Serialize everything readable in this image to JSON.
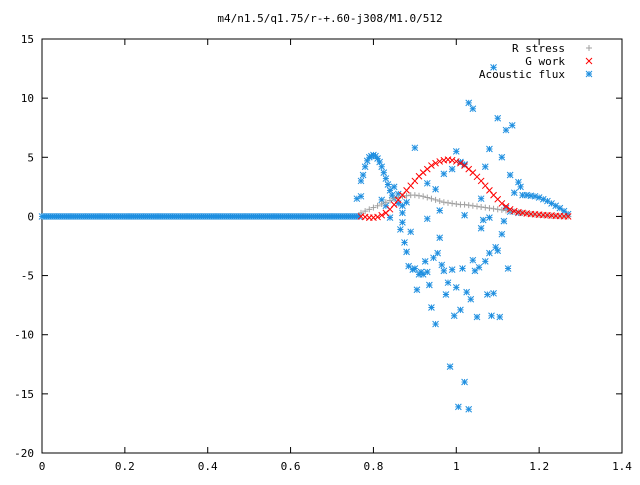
{
  "chart_data": {
    "type": "scatter",
    "title": "m4/n1.5/q1.75/r-+.60-j308/M1.0/512",
    "xlabel": "",
    "ylabel": "",
    "xlim": [
      0,
      1.4
    ],
    "ylim": [
      -20,
      15
    ],
    "x_ticks": [
      0,
      0.2,
      0.4,
      0.6,
      0.8,
      1,
      1.2,
      1.4
    ],
    "x_tick_labels": [
      "0",
      "0.2",
      "0.4",
      "0.6",
      "0.8",
      "1",
      "1.2",
      "1.4"
    ],
    "y_ticks": [
      -20,
      -15,
      -10,
      -5,
      0,
      5,
      10,
      15
    ],
    "y_tick_labels": [
      "-20",
      "-15",
      "-10",
      "-5",
      "0",
      "5",
      "10",
      "15"
    ],
    "grid": false,
    "legend_position": "top-right",
    "series": [
      {
        "name": "R stress",
        "marker": "plus",
        "color": "#a0a0a0",
        "points": [
          [
            0.77,
            0.3
          ],
          [
            0.78,
            0.45
          ],
          [
            0.79,
            0.6
          ],
          [
            0.8,
            0.75
          ],
          [
            0.81,
            0.9
          ],
          [
            0.82,
            1.05
          ],
          [
            0.83,
            1.2
          ],
          [
            0.84,
            1.35
          ],
          [
            0.85,
            1.5
          ],
          [
            0.86,
            1.6
          ],
          [
            0.87,
            1.7
          ],
          [
            0.88,
            1.75
          ],
          [
            0.89,
            1.8
          ],
          [
            0.9,
            1.8
          ],
          [
            0.91,
            1.75
          ],
          [
            0.92,
            1.7
          ],
          [
            0.93,
            1.6
          ],
          [
            0.94,
            1.5
          ],
          [
            0.95,
            1.4
          ],
          [
            0.96,
            1.3
          ],
          [
            0.97,
            1.2
          ],
          [
            0.98,
            1.15
          ],
          [
            0.99,
            1.1
          ],
          [
            1.0,
            1.05
          ],
          [
            1.01,
            1.0
          ],
          [
            1.02,
            1.0
          ],
          [
            1.03,
            0.95
          ],
          [
            1.04,
            0.9
          ],
          [
            1.05,
            0.85
          ],
          [
            1.06,
            0.8
          ],
          [
            1.07,
            0.75
          ],
          [
            1.08,
            0.7
          ],
          [
            1.09,
            0.65
          ],
          [
            1.1,
            0.6
          ],
          [
            1.11,
            0.55
          ],
          [
            1.12,
            0.5
          ],
          [
            1.13,
            0.45
          ],
          [
            1.14,
            0.4
          ],
          [
            1.15,
            0.35
          ],
          [
            1.16,
            0.3
          ],
          [
            1.17,
            0.25
          ],
          [
            1.18,
            0.2
          ],
          [
            1.19,
            0.15
          ],
          [
            1.2,
            0.12
          ],
          [
            1.21,
            0.1
          ],
          [
            1.22,
            0.08
          ],
          [
            1.23,
            0.06
          ],
          [
            1.24,
            0.04
          ],
          [
            1.25,
            0.02
          ],
          [
            1.26,
            0.01
          ],
          [
            1.27,
            0.0
          ]
        ]
      },
      {
        "name": "G work",
        "marker": "cross",
        "color": "#ff0000",
        "points": [
          [
            0.77,
            0.0
          ],
          [
            0.78,
            -0.05
          ],
          [
            0.79,
            -0.1
          ],
          [
            0.8,
            -0.1
          ],
          [
            0.81,
            -0.05
          ],
          [
            0.82,
            0.1
          ],
          [
            0.83,
            0.3
          ],
          [
            0.84,
            0.6
          ],
          [
            0.85,
            1.0
          ],
          [
            0.86,
            1.4
          ],
          [
            0.87,
            1.8
          ],
          [
            0.88,
            2.2
          ],
          [
            0.89,
            2.6
          ],
          [
            0.9,
            3.0
          ],
          [
            0.91,
            3.4
          ],
          [
            0.92,
            3.7
          ],
          [
            0.93,
            4.0
          ],
          [
            0.94,
            4.3
          ],
          [
            0.95,
            4.5
          ],
          [
            0.96,
            4.65
          ],
          [
            0.97,
            4.75
          ],
          [
            0.98,
            4.8
          ],
          [
            0.99,
            4.75
          ],
          [
            1.0,
            4.65
          ],
          [
            1.01,
            4.5
          ],
          [
            1.02,
            4.3
          ],
          [
            1.03,
            4.0
          ],
          [
            1.04,
            3.7
          ],
          [
            1.05,
            3.35
          ],
          [
            1.06,
            3.0
          ],
          [
            1.07,
            2.6
          ],
          [
            1.08,
            2.2
          ],
          [
            1.09,
            1.8
          ],
          [
            1.1,
            1.45
          ],
          [
            1.11,
            1.1
          ],
          [
            1.12,
            0.85
          ],
          [
            1.13,
            0.6
          ],
          [
            1.14,
            0.45
          ],
          [
            1.15,
            0.35
          ],
          [
            1.16,
            0.3
          ],
          [
            1.17,
            0.25
          ],
          [
            1.18,
            0.2
          ],
          [
            1.19,
            0.18
          ],
          [
            1.2,
            0.15
          ],
          [
            1.21,
            0.12
          ],
          [
            1.22,
            0.1
          ],
          [
            1.23,
            0.08
          ],
          [
            1.24,
            0.05
          ],
          [
            1.25,
            0.03
          ],
          [
            1.26,
            0.01
          ],
          [
            1.27,
            0.0
          ]
        ]
      },
      {
        "name": "Acoustic flux",
        "marker": "star",
        "color": "#1f8fe0",
        "points": [
          [
            0.77,
            3.0
          ],
          [
            0.775,
            3.5
          ],
          [
            0.78,
            4.2
          ],
          [
            0.785,
            4.7
          ],
          [
            0.79,
            5.0
          ],
          [
            0.795,
            5.1
          ],
          [
            0.8,
            5.2
          ],
          [
            0.805,
            5.1
          ],
          [
            0.81,
            4.9
          ],
          [
            0.815,
            4.6
          ],
          [
            0.82,
            4.2
          ],
          [
            0.825,
            3.7
          ],
          [
            0.83,
            3.2
          ],
          [
            0.835,
            2.7
          ],
          [
            0.84,
            2.2
          ],
          [
            0.845,
            1.8
          ],
          [
            0.85,
            1.5
          ],
          [
            0.86,
            1.1
          ],
          [
            0.87,
            0.9
          ],
          [
            0.88,
            1.2
          ],
          [
            0.77,
            1.7
          ],
          [
            0.76,
            1.5
          ],
          [
            0.85,
            2.5
          ],
          [
            0.86,
            1.9
          ],
          [
            0.865,
            -1.1
          ],
          [
            0.87,
            -0.5
          ],
          [
            0.875,
            -2.2
          ],
          [
            0.88,
            -3.0
          ],
          [
            0.885,
            -4.2
          ],
          [
            0.89,
            -1.3
          ],
          [
            0.895,
            -4.5
          ],
          [
            0.9,
            -4.4
          ],
          [
            0.905,
            -6.2
          ],
          [
            0.91,
            -4.9
          ],
          [
            0.915,
            -4.7
          ],
          [
            0.92,
            -4.9
          ],
          [
            0.925,
            -3.8
          ],
          [
            0.93,
            -4.7
          ],
          [
            0.935,
            -5.8
          ],
          [
            0.94,
            -7.7
          ],
          [
            0.945,
            -3.5
          ],
          [
            0.95,
            -9.1
          ],
          [
            0.955,
            -3.1
          ],
          [
            0.96,
            -1.8
          ],
          [
            0.965,
            -4.1
          ],
          [
            0.97,
            -4.6
          ],
          [
            0.975,
            -6.6
          ],
          [
            0.98,
            -5.6
          ],
          [
            0.985,
            -12.7
          ],
          [
            0.99,
            -4.5
          ],
          [
            0.995,
            -8.4
          ],
          [
            1.0,
            -6.0
          ],
          [
            1.005,
            -16.1
          ],
          [
            1.01,
            -7.9
          ],
          [
            1.015,
            -4.4
          ],
          [
            1.02,
            -14.0
          ],
          [
            1.025,
            -6.4
          ],
          [
            1.03,
            -16.3
          ],
          [
            1.035,
            -7.0
          ],
          [
            1.04,
            -3.7
          ],
          [
            1.045,
            -4.6
          ],
          [
            1.05,
            -8.5
          ],
          [
            1.055,
            -4.3
          ],
          [
            1.06,
            -1.0
          ],
          [
            1.065,
            -0.3
          ],
          [
            1.07,
            -3.8
          ],
          [
            1.075,
            -6.6
          ],
          [
            1.08,
            -3.1
          ],
          [
            1.085,
            -8.4
          ],
          [
            1.09,
            -6.5
          ],
          [
            1.095,
            -2.6
          ],
          [
            1.1,
            -2.9
          ],
          [
            1.105,
            -8.5
          ],
          [
            1.11,
            -1.5
          ],
          [
            1.115,
            -0.4
          ],
          [
            1.12,
            0.7
          ],
          [
            1.125,
            -4.4
          ],
          [
            0.9,
            5.8
          ],
          [
            0.93,
            2.8
          ],
          [
            0.95,
            2.3
          ],
          [
            0.97,
            3.6
          ],
          [
            0.99,
            4.0
          ],
          [
            1.0,
            5.5
          ],
          [
            1.01,
            4.6
          ],
          [
            1.02,
            4.4
          ],
          [
            1.03,
            9.6
          ],
          [
            1.04,
            9.1
          ],
          [
            1.06,
            1.5
          ],
          [
            1.07,
            4.2
          ],
          [
            1.08,
            5.7
          ],
          [
            1.09,
            12.6
          ],
          [
            1.1,
            8.3
          ],
          [
            1.11,
            5.0
          ],
          [
            1.12,
            7.3
          ],
          [
            1.13,
            3.5
          ],
          [
            1.135,
            7.7
          ],
          [
            1.14,
            2.0
          ],
          [
            1.15,
            2.9
          ],
          [
            1.155,
            2.5
          ],
          [
            1.16,
            1.8
          ],
          [
            1.17,
            1.8
          ],
          [
            1.18,
            1.75
          ],
          [
            1.19,
            1.7
          ],
          [
            1.2,
            1.6
          ],
          [
            1.21,
            1.45
          ],
          [
            1.22,
            1.3
          ],
          [
            1.23,
            1.1
          ],
          [
            1.24,
            0.9
          ],
          [
            1.25,
            0.7
          ],
          [
            1.26,
            0.45
          ],
          [
            1.27,
            0.2
          ],
          [
            0.83,
            0.9
          ],
          [
            0.82,
            1.4
          ],
          [
            0.84,
            -0.1
          ],
          [
            0.87,
            0.3
          ],
          [
            0.93,
            -0.2
          ],
          [
            0.96,
            0.5
          ],
          [
            1.02,
            0.1
          ],
          [
            1.08,
            -0.1
          ],
          [
            1.13,
            0.4
          ],
          [
            1.15,
            0.3
          ]
        ],
        "flat_from_x": 0.0,
        "flat_to_x": 0.765,
        "flat_y": 0.0
      }
    ]
  }
}
